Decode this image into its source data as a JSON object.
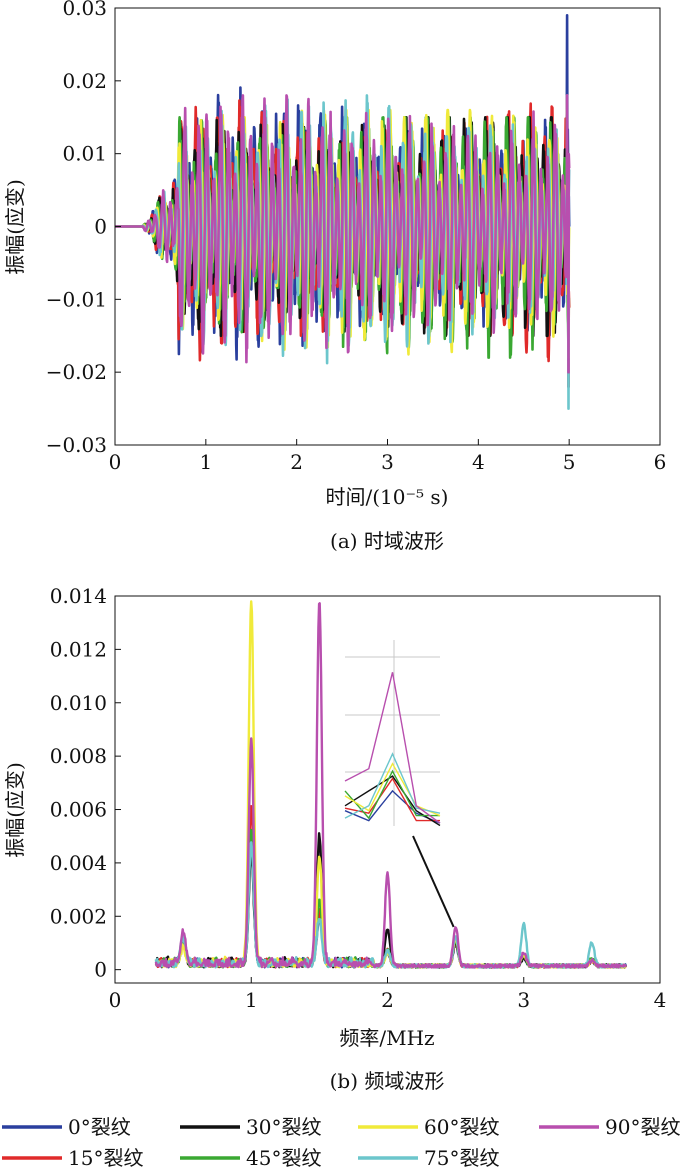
{
  "chart_data": [
    {
      "panel_label": "(a) 时域波形",
      "type": "line",
      "xlabel": "时间/(10⁻⁵ s)",
      "ylabel": "振幅(应变)",
      "xlim": [
        0,
        6
      ],
      "ylim": [
        -0.03,
        0.03
      ],
      "x_ticks": [
        "0",
        "1",
        "2",
        "3",
        "4",
        "5",
        "6"
      ],
      "y_ticks": [
        "−0.03",
        "−0.02",
        "−0.01",
        "0",
        "0.01",
        "0.02",
        "0.03"
      ],
      "signal": {
        "description": "burst vibration starting near 0.3, growing to full amplitude after 0.7, ending at 5",
        "onset": 0.3,
        "full_amplitude_from": 0.7,
        "end": 5.0,
        "typical_peak": 0.017
      },
      "series": [
        {
          "name": "0°裂纹",
          "color": "#2a3f9e",
          "peak_max": 0.029,
          "peak_min": -0.022
        },
        {
          "name": "15°裂纹",
          "color": "#e02a2a",
          "peak_max": 0.018,
          "peak_min": -0.022
        },
        {
          "name": "30°裂纹",
          "color": "#111111",
          "peak_max": 0.015,
          "peak_min": -0.015
        },
        {
          "name": "45°裂纹",
          "color": "#3aa832",
          "peak_max": 0.015,
          "peak_min": -0.018
        },
        {
          "name": "60°裂纹",
          "color": "#f0ea3a",
          "peak_max": 0.016,
          "peak_min": -0.018
        },
        {
          "name": "75°裂纹",
          "color": "#6cc6cc",
          "peak_max": 0.018,
          "peak_min": -0.025
        },
        {
          "name": "90°裂纹",
          "color": "#b84fae",
          "peak_max": 0.018,
          "peak_min": -0.02
        }
      ]
    },
    {
      "panel_label": "(b) 频域波形",
      "type": "line",
      "xlabel": "频率/MHz",
      "ylabel": "振幅(应变)",
      "xlim": [
        0,
        4
      ],
      "ylim": [
        -0.0005,
        0.014
      ],
      "x_ticks": [
        "0",
        "1",
        "2",
        "3",
        "4"
      ],
      "y_ticks": [
        "0",
        "0.002",
        "0.004",
        "0.006",
        "0.008",
        "0.010",
        "0.012",
        "0.014"
      ],
      "x_range": [
        0.3,
        3.75
      ],
      "peak_frequencies": [
        0.5,
        1.0,
        1.5,
        2.0,
        2.5,
        3.0,
        3.5
      ],
      "series": [
        {
          "name": "0°裂纹",
          "color": "#2a3f9e",
          "peaks": [
            0.0009,
            0.0045,
            0.0018,
            0.0005,
            0.0008,
            0.0003,
            0.0002
          ]
        },
        {
          "name": "15°裂纹",
          "color": "#e02a2a",
          "peaks": [
            0.0008,
            0.006,
            0.002,
            0.0006,
            0.0009,
            0.0004,
            0.0002
          ]
        },
        {
          "name": "30°裂纹",
          "color": "#111111",
          "peaks": [
            0.0007,
            0.004,
            0.0048,
            0.0014,
            0.0009,
            0.0003,
            0.0002
          ]
        },
        {
          "name": "45°裂纹",
          "color": "#3aa832",
          "peaks": [
            0.0009,
            0.005,
            0.0025,
            0.0006,
            0.001,
            0.0004,
            0.0003
          ]
        },
        {
          "name": "60°裂纹",
          "color": "#f0ea3a",
          "peaks": [
            0.0006,
            0.0137,
            0.004,
            0.0005,
            0.001,
            0.0004,
            0.0002
          ]
        },
        {
          "name": "75°裂纹",
          "color": "#6cc6cc",
          "peaks": [
            0.001,
            0.0045,
            0.0017,
            0.0006,
            0.0011,
            0.0016,
            0.0009
          ]
        },
        {
          "name": "90°裂纹",
          "color": "#b84fae",
          "peaks": [
            0.0012,
            0.0083,
            0.0137,
            0.0035,
            0.0015,
            0.0005,
            0.0002
          ]
        }
      ],
      "inset": {
        "description": "zoom of the peak near 2.5 MHz",
        "center": 2.5,
        "series_points": [
          {
            "name": "0°裂纹",
            "values": [
              0.0062,
              0.0058,
              0.007,
              0.0061,
              0.0057
            ]
          },
          {
            "name": "15°裂纹",
            "values": [
              0.0063,
              0.0061,
              0.0075,
              0.0058,
              0.0058
            ]
          },
          {
            "name": "30°裂纹",
            "values": [
              0.0064,
              0.007,
              0.0076,
              0.0062,
              0.0056
            ]
          },
          {
            "name": "45°裂纹",
            "values": [
              0.007,
              0.0059,
              0.0078,
              0.006,
              0.006
            ]
          },
          {
            "name": "60°裂纹",
            "values": [
              0.0068,
              0.0062,
              0.0081,
              0.0064,
              0.006
            ]
          },
          {
            "name": "75°裂纹",
            "values": [
              0.0059,
              0.0064,
              0.0085,
              0.0063,
              0.0061
            ]
          },
          {
            "name": "90°裂纹",
            "values": [
              0.0074,
              0.0079,
              0.0118,
              0.0064,
              0.0057
            ]
          }
        ]
      }
    }
  ],
  "legend": {
    "placement": "bottom",
    "items": [
      "0°裂纹",
      "30°裂纹",
      "60°裂纹",
      "90°裂纹",
      "15°裂纹",
      "45°裂纹",
      "75°裂纹"
    ]
  }
}
